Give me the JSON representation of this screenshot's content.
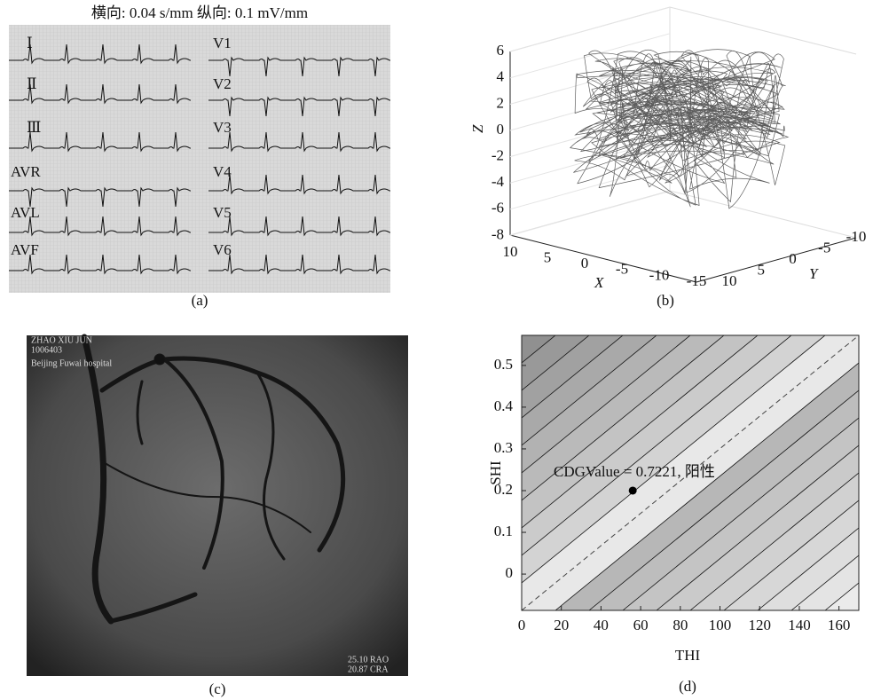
{
  "panel_a": {
    "header": "横向: 0.04 s/mm  纵向: 0.1 mV/mm",
    "leads": [
      "Ⅰ",
      "Ⅱ",
      "Ⅲ",
      "AVR",
      "AVL",
      "AVF",
      "V1",
      "V2",
      "V3",
      "V4",
      "V5",
      "V6"
    ],
    "caption": "(a)"
  },
  "panel_b": {
    "xlabel": "X",
    "ylabel": "Y",
    "zlabel": "Z",
    "xticks": [
      10,
      5,
      0,
      -5,
      -10,
      -15
    ],
    "yticks": [
      -10,
      -5,
      0,
      5,
      10
    ],
    "zticks": [
      6,
      4,
      2,
      0,
      -2,
      -4,
      -6,
      -8
    ],
    "caption": "(b)"
  },
  "panel_c": {
    "overlay": [
      "ZHAO XIU JUN",
      "1006403",
      "Beijing Fuwai hospital",
      "25.10 RAO",
      "20.87 CRA"
    ],
    "caption": "(c)"
  },
  "panel_d": {
    "annotation": "CDGValue = 0.7221, 阳性",
    "xlabel": "THI",
    "ylabel": "SHI",
    "xlim": [
      0,
      170
    ],
    "ylim": [
      -0.087,
      0.572
    ],
    "xticks": [
      0,
      20,
      40,
      60,
      80,
      100,
      120,
      140,
      160
    ],
    "yticks": [
      0,
      0.1,
      0.2,
      0.3,
      0.4,
      0.5
    ],
    "point": {
      "x": 56,
      "y": 0.2
    },
    "caption": "(d)"
  }
}
